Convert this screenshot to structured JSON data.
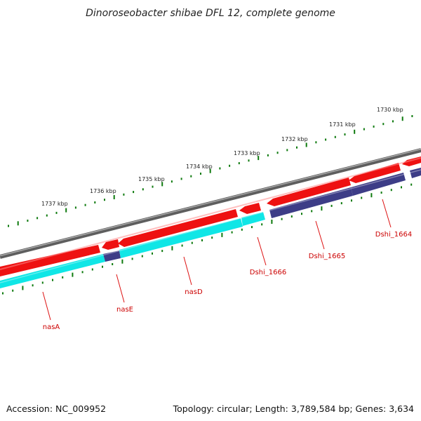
{
  "title": "Dinoroseobacter shibae DFL 12, complete genome",
  "footer": {
    "accession": "Accession: NC_009952",
    "summary": "Topology: circular; Length: 3,789,584 bp; Genes: 3,634"
  },
  "colors": {
    "backbone": "#7f7f7f",
    "forward_cds": "#ee1111",
    "reverse_cds": "#10e6e6",
    "reverse_cds_alt": "#3d3d87",
    "small_tick": "#0e7a0e",
    "label_line": "#dd1111",
    "label_text": "#cc0000"
  },
  "scale": {
    "labels": [
      "1737 kbp",
      "1736 kbp",
      "1735 kbp",
      "1734 kbp",
      "1733 kbp",
      "1732 kbp",
      "1731 kbp",
      "1730 kbp"
    ]
  },
  "genes": [
    {
      "name": "nasA",
      "strand": "reverse",
      "color": "cyan"
    },
    {
      "name": "nasE",
      "strand": "reverse",
      "color": "indigo"
    },
    {
      "name": "nasD",
      "strand": "reverse",
      "color": "cyan"
    },
    {
      "name": "Dshi_1666",
      "strand": "reverse",
      "color": "cyan"
    },
    {
      "name": "Dshi_1665",
      "strand": "reverse",
      "color": "indigo"
    },
    {
      "name": "Dshi_1664",
      "strand": "reverse",
      "color": "indigo"
    }
  ]
}
